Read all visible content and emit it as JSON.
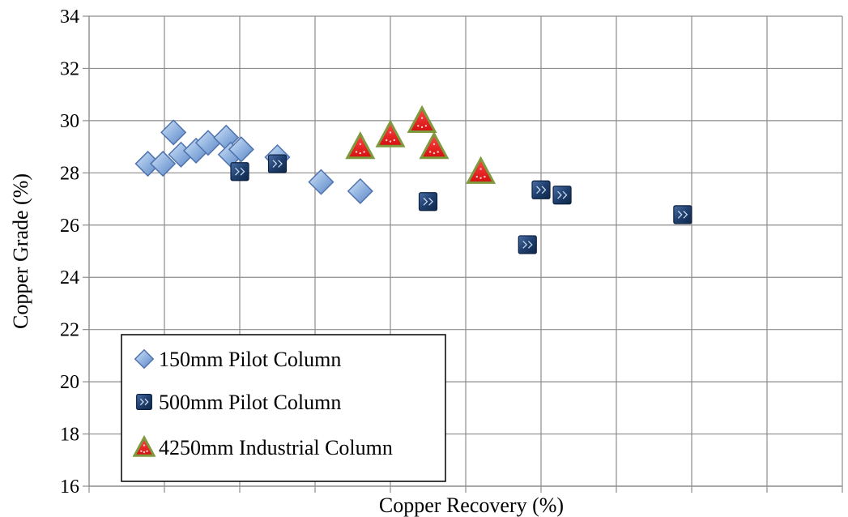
{
  "chart_data": {
    "type": "scatter",
    "title": "",
    "xlabel": "Copper Recovery (%)",
    "ylabel": "Copper Grade (%)",
    "xlim": [
      0,
      10
    ],
    "ylim": [
      16,
      34
    ],
    "yticks": [
      "16",
      "18",
      "20",
      "22",
      "24",
      "26",
      "28",
      "30",
      "32",
      "34"
    ],
    "x_tick_labels_shown": false,
    "grid": true,
    "legend_placement": "bottom-left",
    "series": [
      {
        "name": "150mm Pilot Column",
        "marker": "diamond",
        "color": "#8fb2df",
        "points": [
          {
            "x": 0.78,
            "y": 28.35
          },
          {
            "x": 0.98,
            "y": 28.35
          },
          {
            "x": 1.12,
            "y": 29.55
          },
          {
            "x": 1.22,
            "y": 28.7
          },
          {
            "x": 1.42,
            "y": 28.85
          },
          {
            "x": 1.58,
            "y": 29.15
          },
          {
            "x": 1.82,
            "y": 29.35
          },
          {
            "x": 1.88,
            "y": 28.7
          },
          {
            "x": 2.02,
            "y": 28.9
          },
          {
            "x": 2.5,
            "y": 28.6
          },
          {
            "x": 3.08,
            "y": 27.65
          },
          {
            "x": 3.6,
            "y": 27.3
          }
        ]
      },
      {
        "name": "500mm Pilot Column",
        "marker": "square",
        "color": "#1f3f6e",
        "points": [
          {
            "x": 2.0,
            "y": 28.05
          },
          {
            "x": 2.5,
            "y": 28.35
          },
          {
            "x": 4.5,
            "y": 26.9
          },
          {
            "x": 5.82,
            "y": 25.25
          },
          {
            "x": 6.0,
            "y": 27.35
          },
          {
            "x": 6.28,
            "y": 27.15
          },
          {
            "x": 7.88,
            "y": 26.4
          }
        ]
      },
      {
        "name": "4250mm Industrial Column",
        "marker": "triangle",
        "color": "#ee1c1c",
        "points": [
          {
            "x": 3.6,
            "y": 29.0
          },
          {
            "x": 4.0,
            "y": 29.45
          },
          {
            "x": 4.42,
            "y": 30.0
          },
          {
            "x": 4.58,
            "y": 29.0
          },
          {
            "x": 5.2,
            "y": 28.05
          }
        ]
      }
    ]
  }
}
